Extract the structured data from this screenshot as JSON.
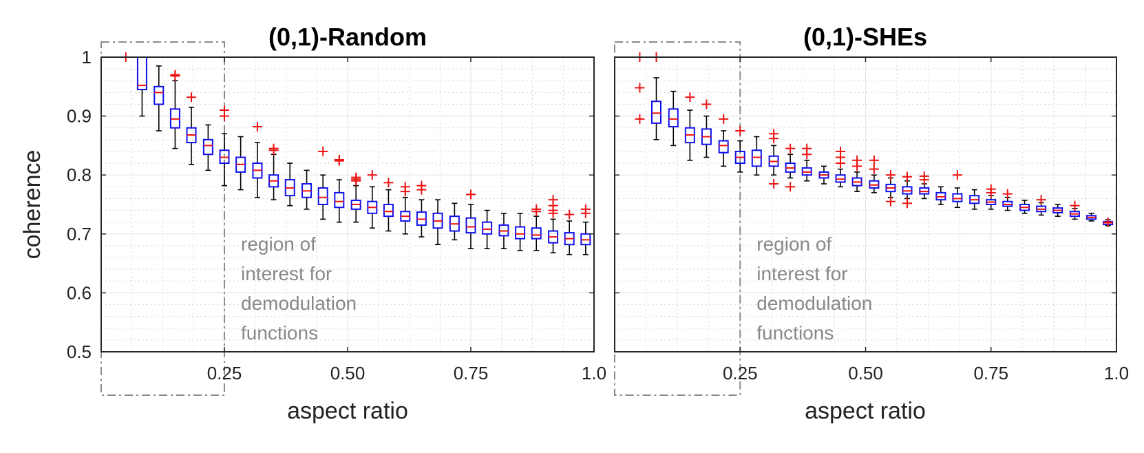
{
  "chart_data": [
    {
      "type": "box",
      "title": "(0,1)-Random",
      "xlabel": "aspect ratio",
      "ylabel": "coherence",
      "xlim": [
        0.0,
        1.0
      ],
      "ylim": [
        0.5,
        1.0
      ],
      "xticks": [
        0.25,
        0.5,
        0.75,
        1.0
      ],
      "xtick_labels": [
        "0.25",
        "0.50",
        "0.75",
        "1.0"
      ],
      "yticks": [
        0.5,
        0.6,
        0.7,
        0.8,
        0.9,
        1.0
      ],
      "ytick_labels": [
        "0.5",
        "0.6",
        "0.7",
        "0.8",
        "0.9",
        "1"
      ],
      "grid": true,
      "annotation": {
        "lines": [
          "region of",
          "interest for",
          "demodulation",
          "functions"
        ],
        "region_x": [
          0.0,
          0.25
        ]
      },
      "boxes": [
        {
          "x": 0.05,
          "q1": 1.0,
          "median": 1.0,
          "q3": 1.0,
          "wlo": 1.0,
          "whi": 1.0,
          "outliers": [
            1.0
          ]
        },
        {
          "x": 0.083,
          "q1": 0.945,
          "median": 0.952,
          "q3": 1.0,
          "wlo": 0.9,
          "whi": 1.0,
          "outliers": []
        },
        {
          "x": 0.117,
          "q1": 0.92,
          "median": 0.94,
          "q3": 0.95,
          "wlo": 0.875,
          "whi": 0.985,
          "outliers": []
        },
        {
          "x": 0.15,
          "q1": 0.88,
          "median": 0.895,
          "q3": 0.912,
          "wlo": 0.845,
          "whi": 0.96,
          "outliers": [
            0.968,
            0.97
          ]
        },
        {
          "x": 0.183,
          "q1": 0.855,
          "median": 0.868,
          "q3": 0.88,
          "wlo": 0.818,
          "whi": 0.915,
          "outliers": [
            0.932
          ]
        },
        {
          "x": 0.217,
          "q1": 0.835,
          "median": 0.85,
          "q3": 0.86,
          "wlo": 0.808,
          "whi": 0.885,
          "outliers": []
        },
        {
          "x": 0.25,
          "q1": 0.82,
          "median": 0.83,
          "q3": 0.842,
          "wlo": 0.782,
          "whi": 0.87,
          "outliers": [
            0.9,
            0.91
          ]
        },
        {
          "x": 0.283,
          "q1": 0.805,
          "median": 0.818,
          "q3": 0.83,
          "wlo": 0.775,
          "whi": 0.865,
          "outliers": []
        },
        {
          "x": 0.317,
          "q1": 0.795,
          "median": 0.808,
          "q3": 0.82,
          "wlo": 0.762,
          "whi": 0.855,
          "outliers": [
            0.882
          ]
        },
        {
          "x": 0.35,
          "q1": 0.78,
          "median": 0.79,
          "q3": 0.8,
          "wlo": 0.758,
          "whi": 0.835,
          "outliers": [
            0.842,
            0.845
          ]
        },
        {
          "x": 0.383,
          "q1": 0.765,
          "median": 0.778,
          "q3": 0.792,
          "wlo": 0.748,
          "whi": 0.82,
          "outliers": []
        },
        {
          "x": 0.417,
          "q1": 0.762,
          "median": 0.773,
          "q3": 0.785,
          "wlo": 0.742,
          "whi": 0.808,
          "outliers": []
        },
        {
          "x": 0.45,
          "q1": 0.75,
          "median": 0.762,
          "q3": 0.778,
          "wlo": 0.725,
          "whi": 0.8,
          "outliers": [
            0.84
          ]
        },
        {
          "x": 0.483,
          "q1": 0.745,
          "median": 0.755,
          "q3": 0.77,
          "wlo": 0.72,
          "whi": 0.792,
          "outliers": [
            0.824,
            0.826
          ]
        },
        {
          "x": 0.517,
          "q1": 0.742,
          "median": 0.75,
          "q3": 0.757,
          "wlo": 0.72,
          "whi": 0.782,
          "outliers": [
            0.79,
            0.793,
            0.796
          ]
        },
        {
          "x": 0.55,
          "q1": 0.735,
          "median": 0.745,
          "q3": 0.755,
          "wlo": 0.71,
          "whi": 0.78,
          "outliers": [
            0.8
          ]
        },
        {
          "x": 0.583,
          "q1": 0.73,
          "median": 0.738,
          "q3": 0.75,
          "wlo": 0.705,
          "whi": 0.775,
          "outliers": [
            0.787
          ]
        },
        {
          "x": 0.617,
          "q1": 0.722,
          "median": 0.73,
          "q3": 0.738,
          "wlo": 0.7,
          "whi": 0.762,
          "outliers": [
            0.772,
            0.78
          ]
        },
        {
          "x": 0.65,
          "q1": 0.715,
          "median": 0.725,
          "q3": 0.737,
          "wlo": 0.695,
          "whi": 0.758,
          "outliers": [
            0.775,
            0.782
          ]
        },
        {
          "x": 0.683,
          "q1": 0.71,
          "median": 0.722,
          "q3": 0.735,
          "wlo": 0.682,
          "whi": 0.758,
          "outliers": []
        },
        {
          "x": 0.717,
          "q1": 0.705,
          "median": 0.717,
          "q3": 0.73,
          "wlo": 0.69,
          "whi": 0.752,
          "outliers": []
        },
        {
          "x": 0.75,
          "q1": 0.702,
          "median": 0.712,
          "q3": 0.727,
          "wlo": 0.675,
          "whi": 0.75,
          "outliers": [
            0.767
          ]
        },
        {
          "x": 0.783,
          "q1": 0.7,
          "median": 0.708,
          "q3": 0.72,
          "wlo": 0.675,
          "whi": 0.74,
          "outliers": []
        },
        {
          "x": 0.817,
          "q1": 0.697,
          "median": 0.705,
          "q3": 0.715,
          "wlo": 0.675,
          "whi": 0.735,
          "outliers": []
        },
        {
          "x": 0.85,
          "q1": 0.692,
          "median": 0.7,
          "q3": 0.712,
          "wlo": 0.672,
          "whi": 0.735,
          "outliers": []
        },
        {
          "x": 0.883,
          "q1": 0.692,
          "median": 0.698,
          "q3": 0.71,
          "wlo": 0.672,
          "whi": 0.73,
          "outliers": [
            0.738,
            0.742
          ]
        },
        {
          "x": 0.917,
          "q1": 0.685,
          "median": 0.695,
          "q3": 0.705,
          "wlo": 0.668,
          "whi": 0.725,
          "outliers": [
            0.735,
            0.74,
            0.748,
            0.758
          ]
        },
        {
          "x": 0.95,
          "q1": 0.682,
          "median": 0.692,
          "q3": 0.702,
          "wlo": 0.665,
          "whi": 0.722,
          "outliers": [
            0.733
          ]
        },
        {
          "x": 0.983,
          "q1": 0.682,
          "median": 0.69,
          "q3": 0.7,
          "wlo": 0.665,
          "whi": 0.72,
          "outliers": [
            0.735,
            0.742
          ]
        }
      ]
    },
    {
      "type": "box",
      "title": "(0,1)-SHEs",
      "xlabel": "aspect ratio",
      "ylabel": "",
      "xlim": [
        0.0,
        1.0
      ],
      "ylim": [
        0.5,
        1.0
      ],
      "xticks": [
        0.25,
        0.5,
        0.75,
        1.0
      ],
      "xtick_labels": [
        "0.25",
        "0.50",
        "0.75",
        "1.0"
      ],
      "yticks": [
        0.5,
        0.6,
        0.7,
        0.8,
        0.9,
        1.0
      ],
      "ytick_labels": [],
      "grid": true,
      "annotation": {
        "lines": [
          "region of",
          "interest for",
          "demodulation",
          "functions"
        ],
        "region_x": [
          0.0,
          0.25
        ]
      },
      "boxes": [
        {
          "x": 0.05,
          "q1": 1.0,
          "median": 1.0,
          "q3": 1.0,
          "wlo": 1.0,
          "whi": 1.0,
          "outliers": [
            1.0,
            0.948,
            0.895
          ]
        },
        {
          "x": 0.083,
          "q1": 0.888,
          "median": 0.905,
          "q3": 0.925,
          "wlo": 0.86,
          "whi": 0.965,
          "outliers": [
            1.0
          ]
        },
        {
          "x": 0.117,
          "q1": 0.882,
          "median": 0.895,
          "q3": 0.912,
          "wlo": 0.85,
          "whi": 0.942,
          "outliers": []
        },
        {
          "x": 0.15,
          "q1": 0.855,
          "median": 0.868,
          "q3": 0.88,
          "wlo": 0.825,
          "whi": 0.91,
          "outliers": [
            0.932
          ]
        },
        {
          "x": 0.183,
          "q1": 0.852,
          "median": 0.865,
          "q3": 0.878,
          "wlo": 0.83,
          "whi": 0.9,
          "outliers": [
            0.92
          ]
        },
        {
          "x": 0.217,
          "q1": 0.838,
          "median": 0.85,
          "q3": 0.858,
          "wlo": 0.815,
          "whi": 0.875,
          "outliers": [
            0.895
          ]
        },
        {
          "x": 0.25,
          "q1": 0.82,
          "median": 0.83,
          "q3": 0.84,
          "wlo": 0.805,
          "whi": 0.858,
          "outliers": [
            0.875
          ]
        },
        {
          "x": 0.283,
          "q1": 0.815,
          "median": 0.83,
          "q3": 0.842,
          "wlo": 0.8,
          "whi": 0.865,
          "outliers": []
        },
        {
          "x": 0.317,
          "q1": 0.815,
          "median": 0.823,
          "q3": 0.832,
          "wlo": 0.8,
          "whi": 0.85,
          "outliers": [
            0.862,
            0.87,
            0.785
          ]
        },
        {
          "x": 0.35,
          "q1": 0.805,
          "median": 0.812,
          "q3": 0.82,
          "wlo": 0.795,
          "whi": 0.835,
          "outliers": [
            0.845,
            0.78
          ]
        },
        {
          "x": 0.383,
          "q1": 0.8,
          "median": 0.805,
          "q3": 0.812,
          "wlo": 0.79,
          "whi": 0.825,
          "outliers": [
            0.835,
            0.845
          ]
        },
        {
          "x": 0.417,
          "q1": 0.795,
          "median": 0.8,
          "q3": 0.805,
          "wlo": 0.785,
          "whi": 0.815,
          "outliers": []
        },
        {
          "x": 0.45,
          "q1": 0.788,
          "median": 0.793,
          "q3": 0.8,
          "wlo": 0.78,
          "whi": 0.81,
          "outliers": [
            0.82,
            0.83,
            0.84
          ]
        },
        {
          "x": 0.483,
          "q1": 0.782,
          "median": 0.788,
          "q3": 0.795,
          "wlo": 0.772,
          "whi": 0.805,
          "outliers": [
            0.815,
            0.825
          ]
        },
        {
          "x": 0.517,
          "q1": 0.778,
          "median": 0.783,
          "q3": 0.79,
          "wlo": 0.77,
          "whi": 0.8,
          "outliers": [
            0.81,
            0.825
          ]
        },
        {
          "x": 0.55,
          "q1": 0.772,
          "median": 0.778,
          "q3": 0.784,
          "wlo": 0.762,
          "whi": 0.795,
          "outliers": [
            0.8,
            0.755
          ]
        },
        {
          "x": 0.583,
          "q1": 0.768,
          "median": 0.773,
          "q3": 0.78,
          "wlo": 0.76,
          "whi": 0.79,
          "outliers": [
            0.797,
            0.752
          ]
        },
        {
          "x": 0.617,
          "q1": 0.768,
          "median": 0.772,
          "q3": 0.778,
          "wlo": 0.76,
          "whi": 0.785,
          "outliers": [
            0.792,
            0.798
          ]
        },
        {
          "x": 0.65,
          "q1": 0.758,
          "median": 0.763,
          "q3": 0.77,
          "wlo": 0.75,
          "whi": 0.78,
          "outliers": []
        },
        {
          "x": 0.683,
          "q1": 0.755,
          "median": 0.76,
          "q3": 0.768,
          "wlo": 0.745,
          "whi": 0.778,
          "outliers": [
            0.8
          ]
        },
        {
          "x": 0.717,
          "q1": 0.752,
          "median": 0.758,
          "q3": 0.765,
          "wlo": 0.742,
          "whi": 0.775,
          "outliers": []
        },
        {
          "x": 0.75,
          "q1": 0.75,
          "median": 0.754,
          "q3": 0.758,
          "wlo": 0.742,
          "whi": 0.765,
          "outliers": [
            0.77,
            0.776
          ]
        },
        {
          "x": 0.783,
          "q1": 0.747,
          "median": 0.75,
          "q3": 0.755,
          "wlo": 0.74,
          "whi": 0.762,
          "outliers": [
            0.768
          ]
        },
        {
          "x": 0.817,
          "q1": 0.74,
          "median": 0.745,
          "q3": 0.75,
          "wlo": 0.735,
          "whi": 0.757,
          "outliers": []
        },
        {
          "x": 0.85,
          "q1": 0.738,
          "median": 0.742,
          "q3": 0.747,
          "wlo": 0.732,
          "whi": 0.753,
          "outliers": [
            0.758
          ]
        },
        {
          "x": 0.883,
          "q1": 0.736,
          "median": 0.74,
          "q3": 0.744,
          "wlo": 0.73,
          "whi": 0.75,
          "outliers": []
        },
        {
          "x": 0.917,
          "q1": 0.73,
          "median": 0.734,
          "q3": 0.738,
          "wlo": 0.725,
          "whi": 0.743,
          "outliers": [
            0.748
          ]
        },
        {
          "x": 0.95,
          "q1": 0.725,
          "median": 0.728,
          "q3": 0.731,
          "wlo": 0.722,
          "whi": 0.735,
          "outliers": []
        },
        {
          "x": 0.983,
          "q1": 0.716,
          "median": 0.719,
          "q3": 0.721,
          "wlo": 0.714,
          "whi": 0.724,
          "outliers": [
            0.72
          ]
        }
      ]
    }
  ]
}
